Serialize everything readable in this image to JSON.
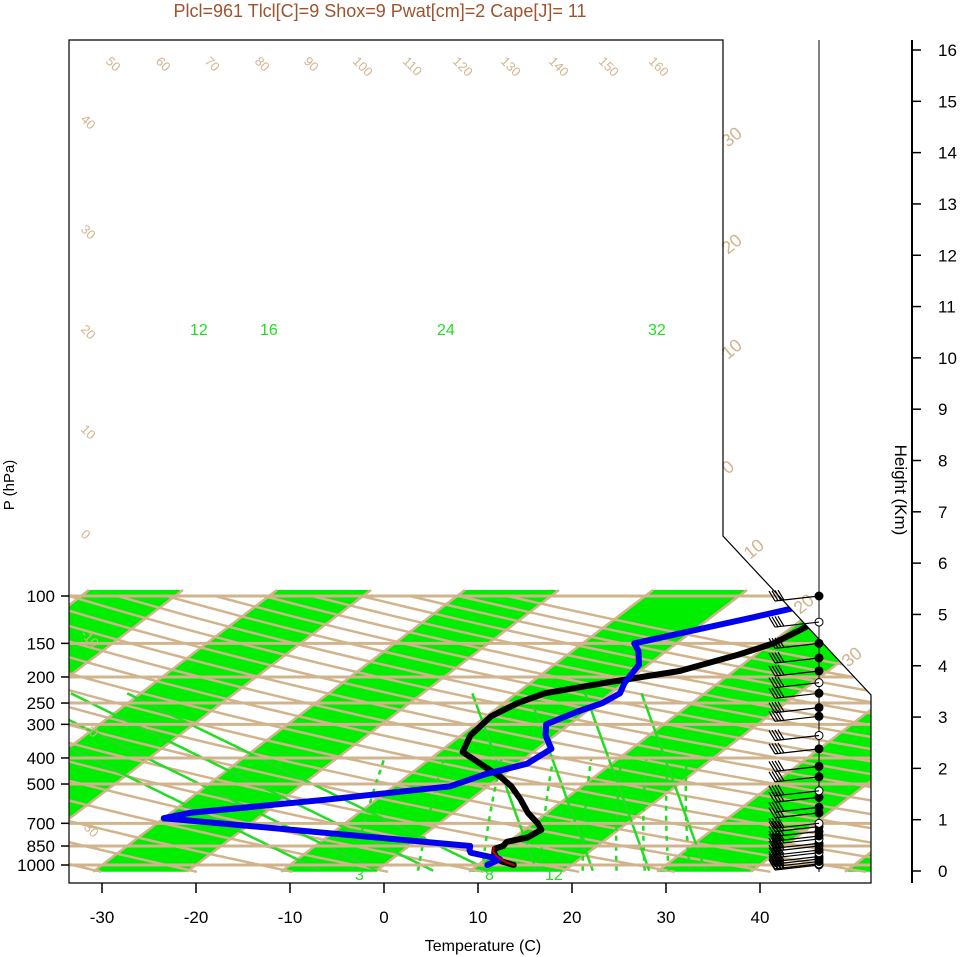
{
  "colors": {
    "band": "#00ee00",
    "isobar": "#d2b48c",
    "temperature": "#000000",
    "dewpoint": "#0000ee",
    "parcel": "#cc0000",
    "mixing_ratio": "#22dd22",
    "title": "#a0522d"
  },
  "chart_data": {
    "type": "line",
    "title": "Plcl=961 Tlcl[C]=9 Shox=9 Pwat[cm]=2 Cape[J]= 11",
    "xlabel": "Temperature (C)",
    "ylabel": "P (hPa)",
    "y2label": "Height (Km)",
    "xlim": [
      -34,
      36
    ],
    "ylim": [
      1050,
      100
    ],
    "pressure_ticks": [
      100,
      150,
      200,
      250,
      300,
      400,
      500,
      700,
      850,
      1000
    ],
    "temp_ticks": [
      -30,
      -20,
      -10,
      0,
      10,
      20,
      30,
      40
    ],
    "height_ticks": [
      0,
      1,
      2,
      3,
      4,
      5,
      6,
      7,
      8,
      9,
      10,
      11,
      12,
      13,
      14,
      15,
      16
    ],
    "isotherm_labels": [
      "50",
      "60",
      "70",
      "80",
      "90",
      "100",
      "110",
      "120",
      "130",
      "140",
      "150",
      "160",
      "40",
      "30",
      "20",
      "10",
      "0",
      "-10",
      "-20",
      "-30"
    ],
    "adiabat_labels": [
      "30",
      "20",
      "10",
      "0",
      "10",
      "20",
      "30"
    ],
    "mixing_ratio_labels": [
      "12",
      "16",
      "24",
      "32",
      "3",
      "8",
      "12"
    ],
    "series": [
      {
        "name": "Temperature",
        "x": [
          13.8,
          12.0,
          10.7,
          10.0,
          9.5,
          10.0,
          9.8,
          11.4,
          11.8,
          10.5,
          8.0,
          5.3,
          2.5,
          0.0,
          -4.0,
          -7.5,
          -9.0,
          -9.5,
          -8.5,
          -7.0,
          -2.0,
          4.2,
          8.2,
          10.3,
          11.2,
          12.0,
          13.0,
          14.5
        ],
        "y": [
          1000,
          970,
          930,
          900,
          870,
          850,
          820,
          790,
          740,
          700,
          640,
          570,
          510,
          470,
          420,
          380,
          330,
          280,
          250,
          230,
          210,
          190,
          165,
          150,
          135,
          120,
          110,
          100
        ]
      },
      {
        "name": "Dewpoint",
        "x": [
          11.0,
          11.5,
          7.5,
          7.0,
          6.5,
          -30.0,
          -28.0,
          -15.0,
          -4.0,
          -2.0,
          1.0,
          1.5,
          -1.0,
          -2.5,
          -1.0,
          0.5,
          1.0,
          0.0,
          -1.0,
          -3.0,
          -4.5,
          4.5,
          11.5
        ],
        "y": [
          1000,
          950,
          900,
          880,
          850,
          670,
          640,
          570,
          510,
          460,
          420,
          370,
          330,
          300,
          270,
          250,
          230,
          210,
          180,
          160,
          150,
          120,
          100
        ]
      },
      {
        "name": "Parcel",
        "x": [
          13.8,
          12.5,
          11.2,
          9.8,
          9.2
        ],
        "y": [
          1000,
          975,
          940,
          895,
          860
        ]
      }
    ],
    "wind_levels": [
      1000,
      990,
      970,
      950,
      930,
      900,
      880,
      850,
      830,
      800,
      780,
      750,
      720,
      700,
      640,
      610,
      560,
      530,
      470,
      430,
      370,
      330,
      280,
      260,
      230,
      210,
      190,
      170,
      150,
      125,
      100
    ]
  }
}
